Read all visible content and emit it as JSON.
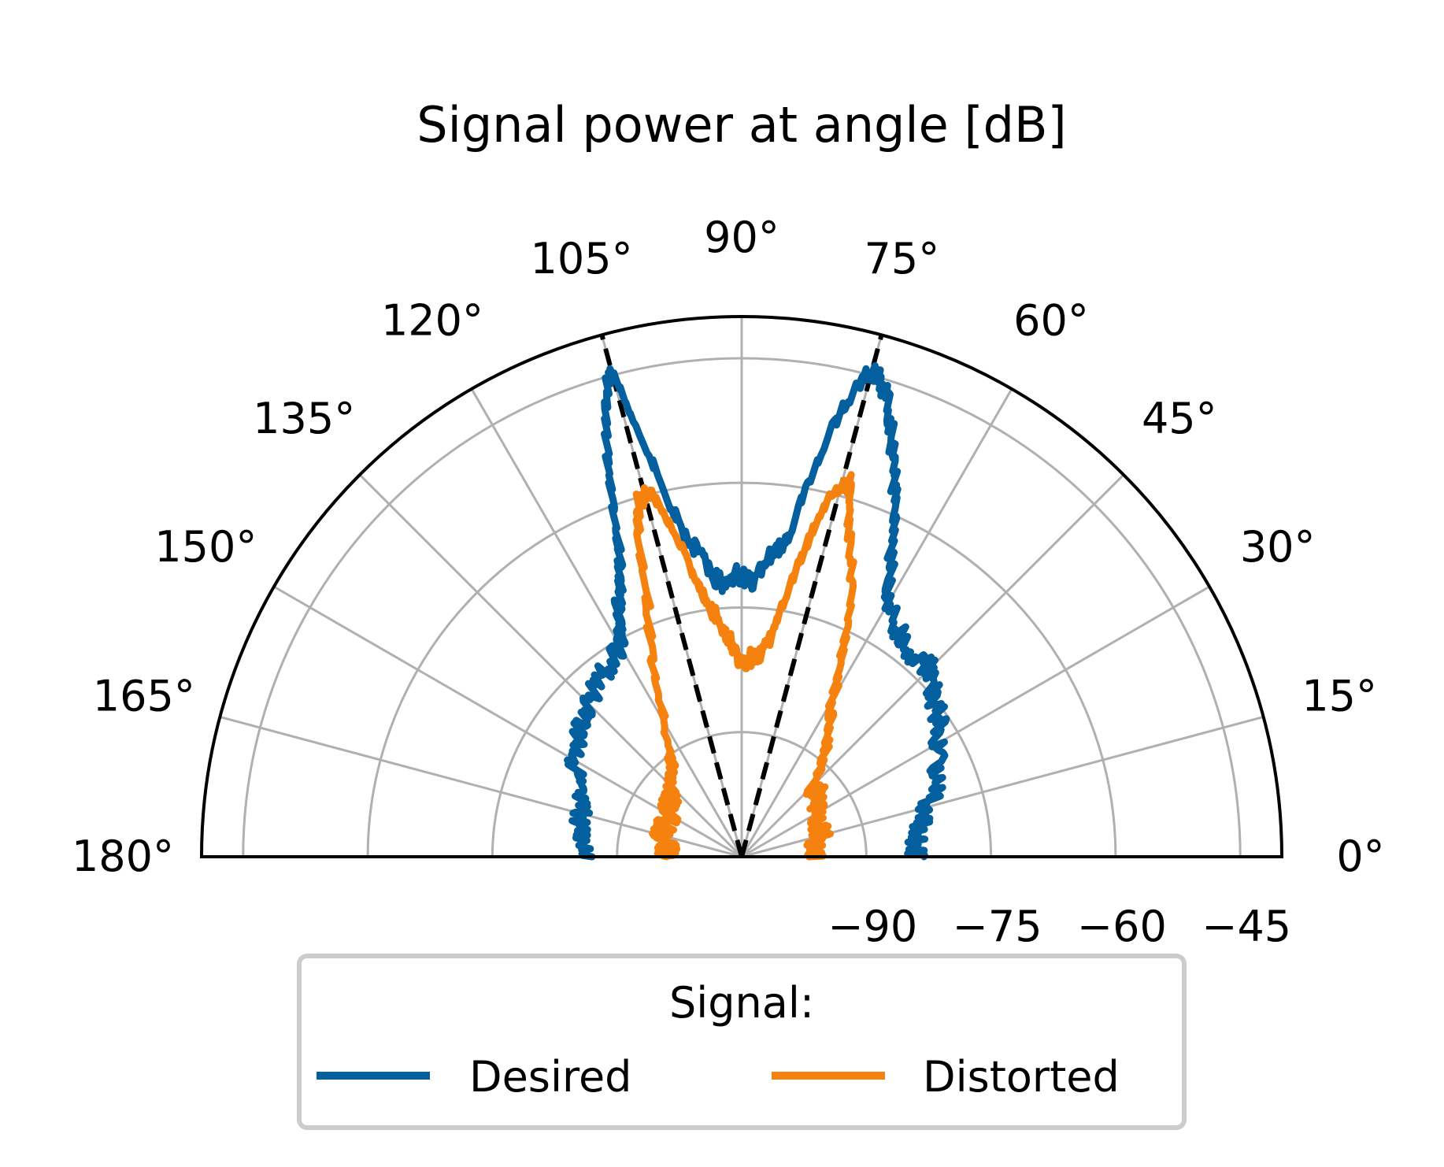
{
  "chart_data": {
    "type": "polar-line",
    "title": "Signal power at angle [dB]",
    "theta_range_deg": [
      0,
      180
    ],
    "r_range": [
      -105,
      -40
    ],
    "theta_ticks": [
      "0°",
      "15°",
      "30°",
      "45°",
      "60°",
      "75°",
      "90°",
      "105°",
      "120°",
      "135°",
      "150°",
      "165°",
      "180°"
    ],
    "theta_tick_values": [
      0,
      15,
      30,
      45,
      60,
      75,
      90,
      105,
      120,
      135,
      150,
      165,
      180
    ],
    "r_ticks": [
      -90,
      -75,
      -60,
      -45
    ],
    "r_tick_labels": [
      "−90",
      "−75",
      "−60",
      "−45"
    ],
    "grid": true,
    "reference_lines_deg": [
      75,
      105
    ],
    "legend": {
      "title": "Signal:",
      "placement": "bottom-center",
      "columns": 2
    },
    "series": [
      {
        "name": "Desired",
        "color": "#045f9e",
        "theta_deg": [
          0,
          5,
          10,
          15,
          20,
          25,
          30,
          35,
          40,
          45,
          50,
          55,
          60,
          62,
          64,
          66,
          68,
          70,
          72,
          74,
          75,
          76,
          78,
          80,
          82,
          84,
          86,
          88,
          90,
          92,
          94,
          96,
          98,
          100,
          102,
          104,
          105,
          106,
          108,
          110,
          112,
          114,
          116,
          118,
          120,
          125,
          130,
          135,
          140,
          145,
          150,
          155,
          160,
          165,
          170,
          175,
          180
        ],
        "r": [
          -84,
          -84,
          -83,
          -82,
          -80,
          -79,
          -78,
          -76,
          -75,
          -73,
          -73,
          -72,
          -70,
          -67,
          -64,
          -60,
          -56,
          -52,
          -48,
          -45,
          -44.5,
          -46,
          -52,
          -60,
          -67,
          -68,
          -70,
          -72,
          -71,
          -71,
          -72,
          -71,
          -68,
          -66,
          -60,
          -50,
          -44.5,
          -46,
          -52,
          -60,
          -66,
          -69,
          -71,
          -74,
          -76,
          -77,
          -78,
          -79,
          -80,
          -81,
          -82,
          -83,
          -84,
          -85,
          -85,
          -86,
          -87
        ]
      },
      {
        "name": "Distorted",
        "color": "#f5820f",
        "theta_deg": [
          0,
          5,
          10,
          15,
          20,
          25,
          30,
          35,
          40,
          45,
          50,
          55,
          60,
          64,
          68,
          72,
          74,
          76,
          78,
          80,
          82,
          84,
          86,
          88,
          90,
          92,
          94,
          96,
          98,
          100,
          102,
          104,
          106,
          108,
          110,
          115,
          120,
          125,
          130,
          135,
          140,
          145,
          150,
          155,
          160,
          165,
          170,
          175,
          180
        ],
        "r": [
          -96,
          -96,
          -96,
          -95,
          -95,
          -95,
          -94,
          -94,
          -93,
          -93,
          -90,
          -87,
          -83,
          -77,
          -70,
          -63,
          -58,
          -60,
          -66,
          -72,
          -78,
          -80,
          -81,
          -81,
          -82,
          -80,
          -78,
          -76,
          -74,
          -70,
          -64,
          -60,
          -60,
          -65,
          -72,
          -80,
          -87,
          -90,
          -92,
          -93,
          -94,
          -94,
          -95,
          -95,
          -95,
          -95,
          -96,
          -96,
          -96
        ]
      }
    ]
  },
  "colors": {
    "desired": "#045f9e",
    "distorted": "#f5820f",
    "grid": "#b0b0b0",
    "reference": "#000000"
  }
}
